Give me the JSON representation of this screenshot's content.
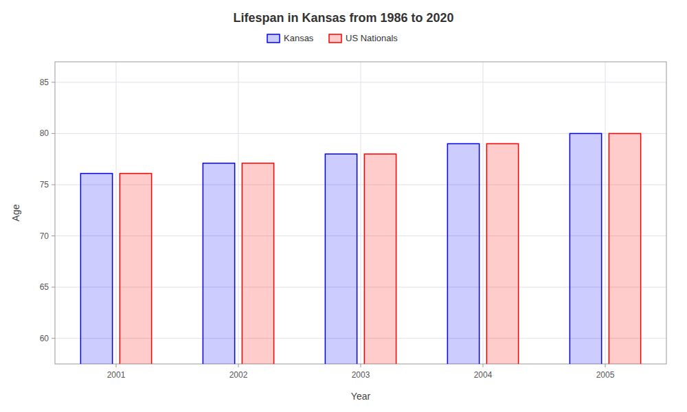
{
  "chart_data": {
    "type": "bar",
    "title": "Lifespan in Kansas from 1986 to 2020",
    "x_label": "Year",
    "y_label": "Age",
    "categories": [
      "2001",
      "2002",
      "2003",
      "2004",
      "2005"
    ],
    "series": [
      {
        "name": "Kansas",
        "color": "#0000ff",
        "values": [
          76.1,
          77.1,
          78.0,
          79.0,
          80.0
        ]
      },
      {
        "name": "US Nationals",
        "color": "#ff0000",
        "values": [
          76.1,
          77.1,
          78.0,
          79.0,
          80.0
        ]
      }
    ],
    "ylim": [
      57.5,
      87
    ],
    "yticks": [
      60,
      65,
      70,
      75,
      80,
      85
    ],
    "grid": true,
    "legend": "top"
  }
}
